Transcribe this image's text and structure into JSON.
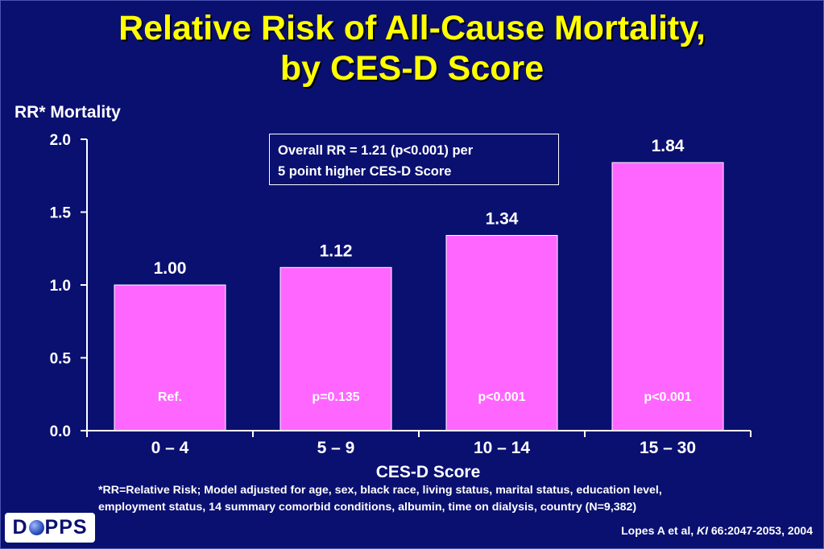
{
  "slide": {
    "title_line1": "Relative Risk of All-Cause Mortality,",
    "title_line2": "by CES-D Score",
    "note_line1": "Overall RR = 1.21 (p<0.001) per",
    "note_line2": "5 point higher CES-D Score",
    "footnote_line1": "*RR=Relative Risk; Model adjusted for age, sex, black race, living status, marital status, education level,",
    "footnote_line2": "employment status, 14 summary comorbid conditions, albumin, time on dialysis, country  (N=9,382)",
    "citation_prefix": "Lopes A et al, ",
    "citation_journal": "KI",
    "citation_suffix": " 66:2047-2053, 2004",
    "logo_left": "D",
    "logo_right": "PPS"
  },
  "colors": {
    "background": "#0a1070",
    "title": "#ffff00",
    "bar": "#ff66ff",
    "text": "#ffffff"
  },
  "chart_data": {
    "type": "bar",
    "categories": [
      "0 – 4",
      "5 – 9",
      "10 – 14",
      "15 – 30"
    ],
    "values": [
      1.0,
      1.12,
      1.34,
      1.84
    ],
    "value_labels": [
      "1.00",
      "1.12",
      "1.34",
      "1.84"
    ],
    "p_labels": [
      "Ref.",
      "p=0.135",
      "p<0.001",
      "p<0.001"
    ],
    "xlabel": "CES-D Score",
    "ylabel": "RR* Mortality",
    "ylim": [
      0,
      2.0
    ],
    "yticks": [
      0.0,
      0.5,
      1.0,
      1.5,
      2.0
    ],
    "ytick_labels": [
      "0.0",
      "0.5",
      "1.0",
      "1.5",
      "2.0"
    ],
    "grid": false
  }
}
